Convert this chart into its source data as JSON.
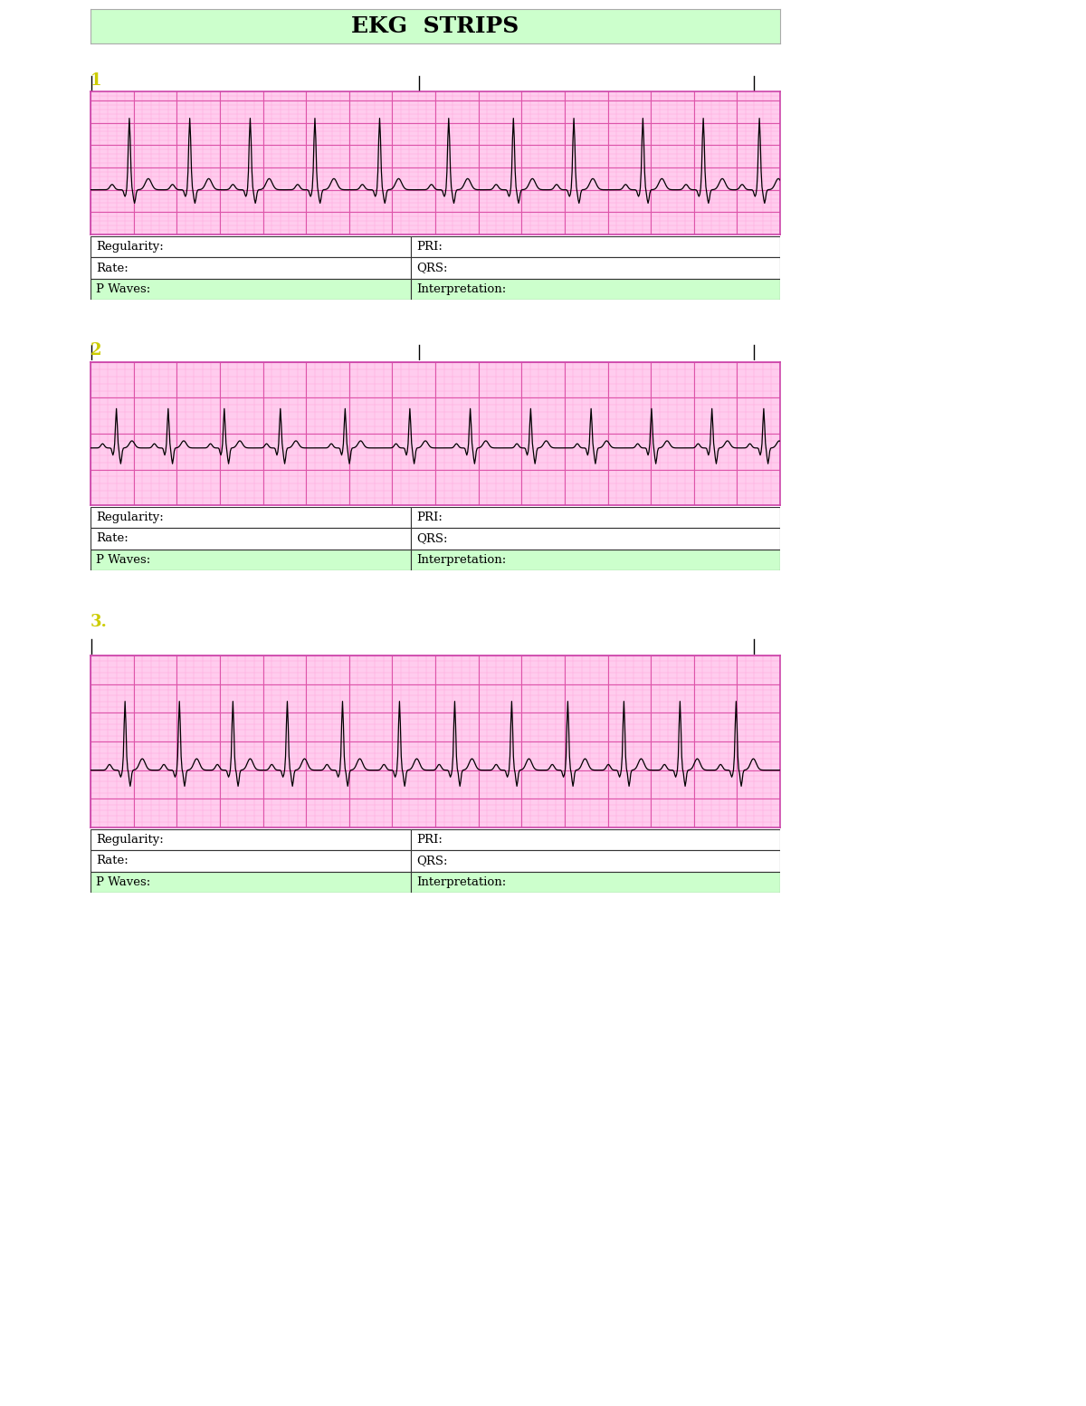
{
  "title": "EKG  STRIPS",
  "title_bg": "#ccffcc",
  "title_fontsize": 18,
  "page_bg": "#ffffff",
  "strip_bg": "#ffccee",
  "strip_minor_color": "#ffaadd",
  "strip_major_color": "#dd55aa",
  "strip_border_color": "#cc44aa",
  "table_border_color": "#333333",
  "table_header_bg": "#ffffff",
  "table_interp_bg": "#ccffcc",
  "number_color": "#cccc00",
  "table_rows": [
    [
      "Regularity:",
      "PRI:"
    ],
    [
      "Rate:",
      "QRS:"
    ],
    [
      "P Waves:",
      "Interpretation:"
    ]
  ],
  "section_numbers": [
    "1",
    "2",
    "3."
  ],
  "col_split": 0.465
}
